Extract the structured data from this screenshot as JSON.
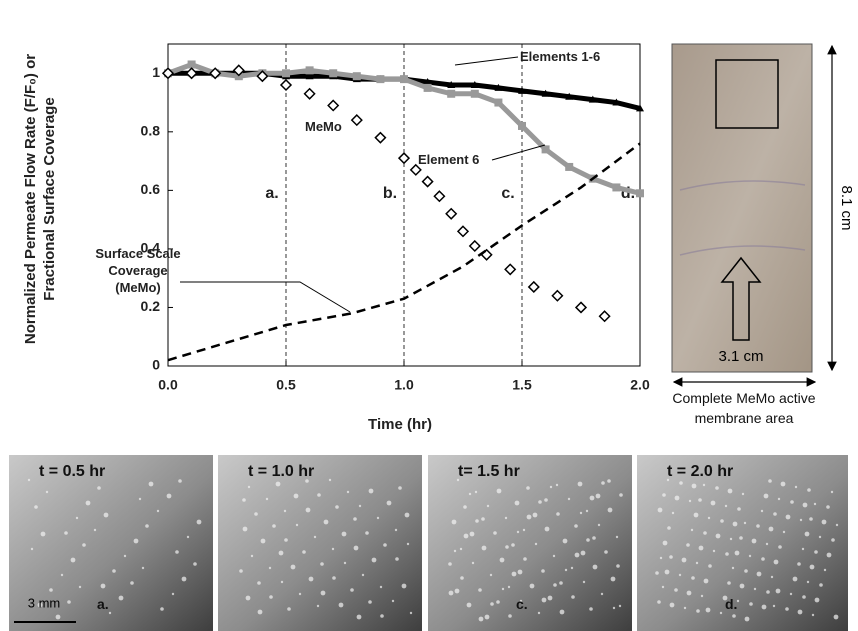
{
  "chart_data": {
    "type": "line",
    "y_label": "Normalized Permeate Flow Rate (F/F₀) or Fractional Surface Coverage",
    "x_label": "Time (hr)",
    "xlim": [
      0,
      2.0
    ],
    "ylim": [
      0,
      1.1
    ],
    "xticks": [
      {
        "value": 0,
        "label": "0.0"
      },
      0.5,
      {
        "value": 1,
        "label": "1.0"
      },
      1.5,
      {
        "value": 2,
        "label": "2.0"
      }
    ],
    "yticks": [
      0,
      0.2,
      0.4,
      0.6,
      0.8,
      1
    ],
    "reference_lines": [
      0.5,
      1.0,
      1.5
    ],
    "phase_labels": [
      "a.",
      "b.",
      "c.",
      "d."
    ],
    "series": [
      {
        "name": "Elements 1-6",
        "color": "#000000",
        "marker": "triangle",
        "x": [
          0,
          0.1,
          0.2,
          0.3,
          0.4,
          0.5,
          0.6,
          0.7,
          0.8,
          0.9,
          1.0,
          1.1,
          1.2,
          1.3,
          1.4,
          1.5,
          1.6,
          1.7,
          1.8,
          1.9,
          2.0
        ],
        "values": [
          1.0,
          1.0,
          1.0,
          1.0,
          1.0,
          0.99,
          0.99,
          0.99,
          0.98,
          0.98,
          0.98,
          0.97,
          0.96,
          0.96,
          0.95,
          0.94,
          0.93,
          0.92,
          0.91,
          0.9,
          0.88
        ]
      },
      {
        "name": "Element 6",
        "color": "#999999",
        "marker": "square",
        "x": [
          0,
          0.1,
          0.2,
          0.3,
          0.4,
          0.5,
          0.6,
          0.7,
          0.8,
          0.9,
          1.0,
          1.1,
          1.2,
          1.3,
          1.4,
          1.5,
          1.6,
          1.7,
          1.8,
          1.9,
          2.0
        ],
        "values": [
          1.0,
          1.03,
          1.0,
          0.99,
          1.0,
          1.0,
          1.01,
          1.0,
          0.99,
          0.98,
          0.98,
          0.95,
          0.93,
          0.93,
          0.9,
          0.82,
          0.74,
          0.68,
          0.64,
          0.61,
          0.59
        ]
      },
      {
        "name": "MeMo",
        "color": "#000000",
        "marker": "diamond",
        "x": [
          0,
          0.1,
          0.2,
          0.3,
          0.4,
          0.5,
          0.6,
          0.7,
          0.8,
          0.9,
          1.0,
          1.05,
          1.1,
          1.15,
          1.2,
          1.25,
          1.3,
          1.35,
          1.45,
          1.55,
          1.65,
          1.75,
          1.85
        ],
        "values": [
          1.0,
          1.0,
          1.0,
          1.01,
          0.99,
          0.96,
          0.93,
          0.89,
          0.84,
          0.78,
          0.71,
          0.67,
          0.63,
          0.58,
          0.52,
          0.46,
          0.41,
          0.38,
          0.33,
          0.27,
          0.24,
          0.2,
          0.17
        ]
      },
      {
        "name": "Surface Scale Coverage (MeMo)",
        "color": "#000000",
        "marker": "dashed",
        "x": [
          0,
          0.25,
          0.5,
          0.78,
          1.0,
          1.25,
          1.5,
          1.75,
          2.0
        ],
        "values": [
          0.02,
          0.08,
          0.14,
          0.18,
          0.23,
          0.34,
          0.48,
          0.61,
          0.76
        ]
      }
    ]
  },
  "membrane": {
    "length": "8.1 cm",
    "width": "3.1 cm",
    "caption": "Complete MeMo active membrane area"
  },
  "micrographs": [
    {
      "title": "t = 0.5 hr",
      "label": "a."
    },
    {
      "title": "t = 1.0 hr",
      "label": null
    },
    {
      "title": "t= 1.5 hr",
      "label": "c."
    },
    {
      "title": "t = 2.0 hr",
      "label": "d."
    }
  ],
  "scale_bar": "3 mm"
}
